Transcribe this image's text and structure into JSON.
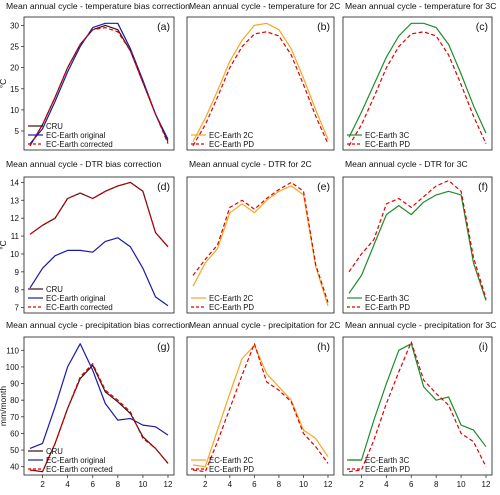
{
  "colors": {
    "cru": "#3a1010",
    "ec_original": "#1a1aa8",
    "corrected": "#e00000",
    "pd": "#e00000",
    "warm2c": "#f5a623",
    "warm3c": "#1e8c2a",
    "frame": "#333333"
  },
  "chart_data": [
    {
      "type": "line",
      "title": "Mean annual cycle - temperature bias correction",
      "label": "(a)",
      "ylabel": "°C",
      "x": [
        1,
        2,
        3,
        4,
        5,
        6,
        7,
        8,
        9,
        10,
        11,
        12
      ],
      "ylim": [
        0.5,
        32
      ],
      "yticks": [
        5,
        10,
        15,
        20,
        25,
        30
      ],
      "xticks": [],
      "legend": "bottom-left",
      "series": [
        {
          "name": "CRU",
          "style": "cru",
          "values": [
            1.5,
            6.5,
            13,
            20,
            25.5,
            29,
            30,
            29,
            24,
            16.5,
            9,
            2.5
          ]
        },
        {
          "name": "EC-Earth original",
          "style": "ec_original",
          "values": [
            2,
            5.5,
            12,
            19,
            25,
            29.5,
            30.5,
            30.5,
            24.5,
            17,
            9,
            3
          ]
        },
        {
          "name": "EC-Earth corrected",
          "style": "corrected",
          "values": [
            1.5,
            6.5,
            13,
            20,
            25.5,
            29,
            29.5,
            28.5,
            24,
            16.5,
            9,
            2
          ]
        }
      ]
    },
    {
      "type": "line",
      "title": "Mean annual cycle - temperature for 2C",
      "label": "(b)",
      "ylabel": "",
      "x": [
        1,
        2,
        3,
        4,
        5,
        6,
        7,
        8,
        9,
        10,
        11,
        12
      ],
      "ylim": [
        0.5,
        32
      ],
      "yticks": [],
      "xticks": [],
      "legend": "bottom-left",
      "series": [
        {
          "name": "EC-Earth 2C",
          "style": "warm2c",
          "values": [
            2.5,
            8,
            14.5,
            21.5,
            26.5,
            30,
            30.5,
            29,
            24.5,
            17.5,
            10,
            3
          ]
        },
        {
          "name": "EC-Earth PD",
          "style": "pd",
          "values": [
            1.5,
            6.5,
            13,
            20,
            25,
            28,
            28.5,
            27.5,
            23,
            16,
            8.5,
            2
          ]
        }
      ]
    },
    {
      "type": "line",
      "title": "Mean annual cycle - temperature for 3C",
      "label": "(c)",
      "ylabel": "",
      "x": [
        1,
        2,
        3,
        4,
        5,
        6,
        7,
        8,
        9,
        10,
        11,
        12
      ],
      "ylim": [
        0.5,
        32
      ],
      "yticks": [],
      "xticks": [],
      "legend": "bottom-left",
      "series": [
        {
          "name": "EC-Earth 3C",
          "style": "warm3c",
          "values": [
            3.5,
            9.5,
            16,
            22.5,
            27.5,
            30.5,
            30.5,
            29.5,
            25.5,
            18.5,
            11,
            4.5
          ]
        },
        {
          "name": "EC-Earth PD",
          "style": "pd",
          "values": [
            1.5,
            6.5,
            13,
            20,
            25,
            28,
            28.5,
            27.5,
            23,
            16,
            8.5,
            2
          ]
        }
      ]
    },
    {
      "type": "line",
      "title": "Mean annual cycle - DTR bias correction",
      "label": "(d)",
      "ylabel": "°C",
      "x": [
        1,
        2,
        3,
        4,
        5,
        6,
        7,
        8,
        9,
        10,
        11,
        12
      ],
      "ylim": [
        6.7,
        14.3
      ],
      "yticks": [
        7,
        8,
        9,
        10,
        11,
        12,
        13,
        14
      ],
      "xticks": [],
      "legend": "bottom-left",
      "series": [
        {
          "name": "CRU",
          "style": "cru",
          "values": [
            11.1,
            11.6,
            12.0,
            13.1,
            13.4,
            13.1,
            13.5,
            13.8,
            14.0,
            13.5,
            11.2,
            10.4
          ]
        },
        {
          "name": "EC-Earth original",
          "style": "ec_original",
          "values": [
            8.1,
            9.2,
            9.9,
            10.2,
            10.2,
            10.1,
            10.7,
            10.9,
            10.4,
            9.2,
            7.6,
            7.1
          ]
        },
        {
          "name": "EC-Earth corrected",
          "style": "corrected",
          "values": [
            11.1,
            11.6,
            12.0,
            13.1,
            13.4,
            13.1,
            13.5,
            13.8,
            14.0,
            13.5,
            11.2,
            10.4
          ]
        }
      ]
    },
    {
      "type": "line",
      "title": "Mean annual cycle - DTR for 2C",
      "label": "(e)",
      "ylabel": "",
      "x": [
        1,
        2,
        3,
        4,
        5,
        6,
        7,
        8,
        9,
        10,
        11,
        12
      ],
      "ylim": [
        6.7,
        14.3
      ],
      "yticks": [],
      "xticks": [],
      "legend": "bottom-left",
      "series": [
        {
          "name": "EC-Earth 2C",
          "style": "warm2c",
          "values": [
            8.2,
            9.5,
            10.3,
            12.3,
            12.8,
            12.3,
            13.0,
            13.5,
            13.8,
            13.3,
            9.3,
            7.1
          ]
        },
        {
          "name": "EC-Earth PD",
          "style": "pd",
          "values": [
            8.8,
            9.7,
            10.5,
            12.6,
            13.0,
            12.5,
            13.1,
            13.6,
            14.0,
            13.5,
            9.4,
            7.3
          ]
        }
      ]
    },
    {
      "type": "line",
      "title": "Mean annual cycle - DTR for 3C",
      "label": "(f)",
      "ylabel": "",
      "x": [
        1,
        2,
        3,
        4,
        5,
        6,
        7,
        8,
        9,
        10,
        11,
        12
      ],
      "ylim": [
        6.7,
        14.3
      ],
      "yticks": [],
      "xticks": [],
      "legend": "bottom-left",
      "series": [
        {
          "name": "EC-Earth 3C",
          "style": "warm3c",
          "values": [
            7.8,
            8.8,
            10.5,
            12.2,
            12.7,
            12.2,
            12.9,
            13.3,
            13.5,
            13.3,
            9.5,
            7.4
          ]
        },
        {
          "name": "EC-Earth PD",
          "style": "pd",
          "values": [
            9.0,
            10.0,
            10.8,
            12.8,
            13.1,
            12.6,
            13.2,
            13.8,
            14.1,
            13.5,
            9.8,
            7.5
          ]
        }
      ]
    },
    {
      "type": "line",
      "title": "Mean annual cycle - precipitation bias correction",
      "label": "(g)",
      "ylabel": "mm/month",
      "x": [
        1,
        2,
        3,
        4,
        5,
        6,
        7,
        8,
        9,
        10,
        11,
        12
      ],
      "ylim": [
        35,
        118
      ],
      "yticks": [
        40,
        50,
        60,
        70,
        80,
        90,
        100,
        110
      ],
      "xticks": [
        2,
        4,
        6,
        8,
        10,
        12
      ],
      "legend": "bottom-left",
      "series": [
        {
          "name": "CRU",
          "style": "cru",
          "values": [
            38,
            37,
            54,
            75,
            93,
            101,
            85,
            79,
            72,
            58,
            51,
            42
          ]
        },
        {
          "name": "EC-Earth original",
          "style": "ec_original",
          "values": [
            51,
            54,
            76,
            100,
            114,
            98,
            78,
            68,
            69,
            65,
            64,
            59
          ]
        },
        {
          "name": "EC-Earth corrected",
          "style": "corrected",
          "values": [
            38,
            37,
            54,
            75,
            94,
            102,
            86,
            80,
            73,
            57,
            51,
            42
          ]
        }
      ]
    },
    {
      "type": "line",
      "title": "Mean annual cycle - precipitation for 2C",
      "label": "(h)",
      "ylabel": "",
      "x": [
        1,
        2,
        3,
        4,
        5,
        6,
        7,
        8,
        9,
        10,
        11,
        12
      ],
      "ylim": [
        35,
        118
      ],
      "yticks": [],
      "xticks": [
        2,
        4,
        6,
        8,
        10,
        12
      ],
      "legend": "bottom-left",
      "series": [
        {
          "name": "EC-Earth 2C",
          "style": "warm2c",
          "values": [
            41,
            40,
            62,
            84,
            105,
            113,
            96,
            88,
            80,
            62,
            57,
            46
          ]
        },
        {
          "name": "EC-Earth PD",
          "style": "pd",
          "values": [
            38,
            37,
            55,
            75,
            95,
            114,
            91,
            86,
            79,
            60,
            52,
            42
          ]
        }
      ]
    },
    {
      "type": "line",
      "title": "Mean annual cycle - precipitation for 3C",
      "label": "(i)",
      "ylabel": "",
      "x": [
        1,
        2,
        3,
        4,
        5,
        6,
        7,
        8,
        9,
        10,
        11,
        12
      ],
      "ylim": [
        35,
        118
      ],
      "yticks": [],
      "xticks": [
        2,
        4,
        6,
        8,
        10,
        12
      ],
      "legend": "bottom-left",
      "series": [
        {
          "name": "EC-Earth 3C",
          "style": "warm3c",
          "values": [
            44,
            44,
            68,
            90,
            110,
            114,
            88,
            80,
            82,
            65,
            62,
            52
          ]
        },
        {
          "name": "EC-Earth PD",
          "style": "pd",
          "values": [
            37,
            38,
            56,
            78,
            97,
            115,
            92,
            84,
            77,
            60,
            55,
            40
          ]
        }
      ]
    }
  ]
}
